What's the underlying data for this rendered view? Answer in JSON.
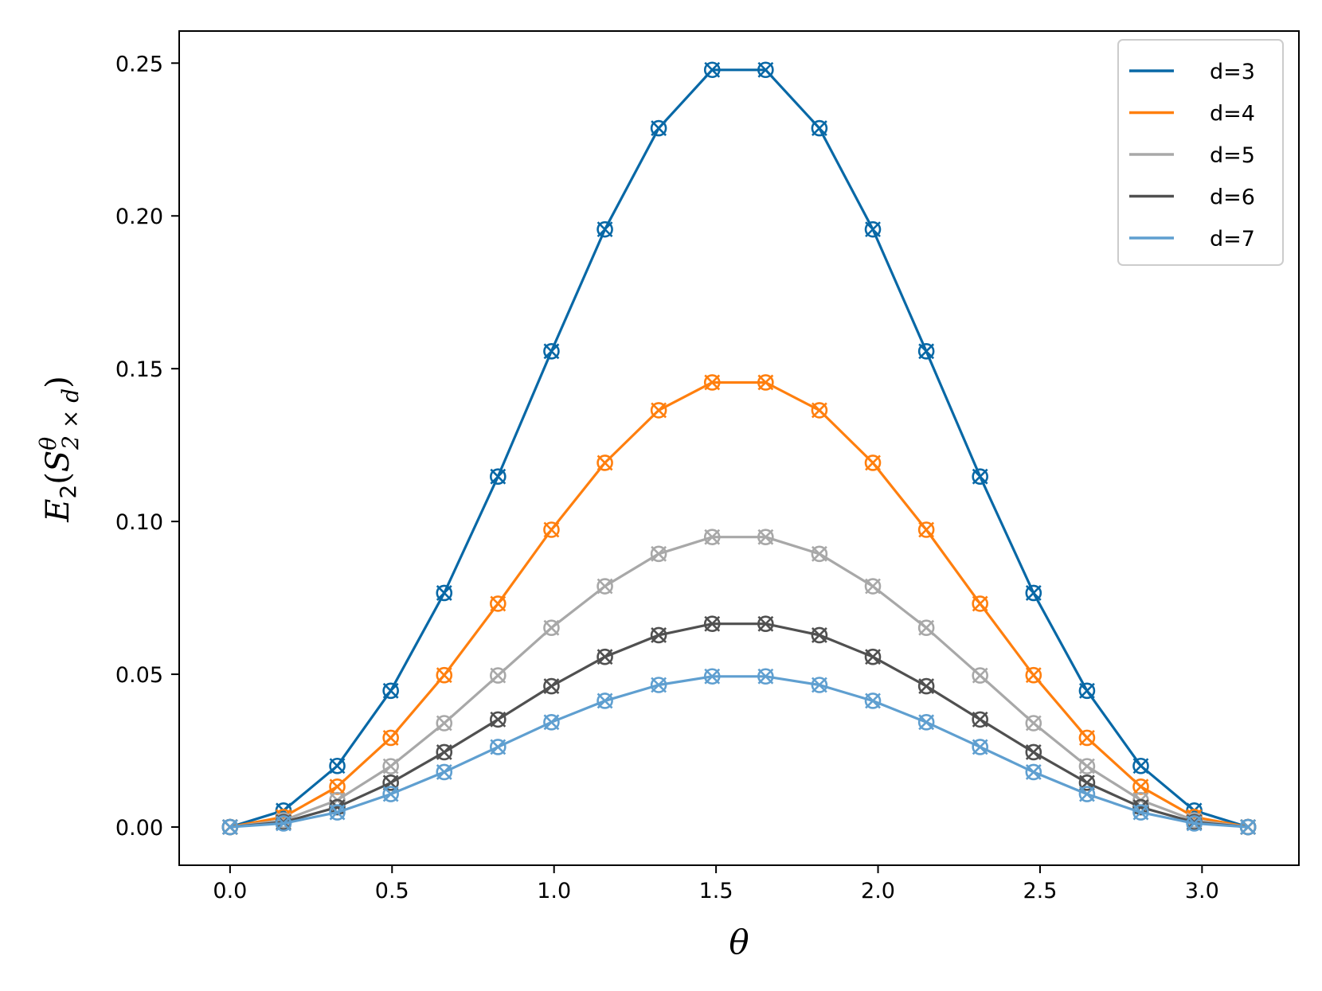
{
  "chart_data": {
    "type": "line",
    "xlabel": "θ",
    "ylabel": {
      "E": "E",
      "sub2": "2",
      "paren_open": "(",
      "S": "S",
      "sup": "θ",
      "sub": "2 × d",
      "paren_close": ")"
    },
    "xlim": [
      -0.157,
      3.299
    ],
    "ylim": [
      -0.0125,
      0.2605
    ],
    "x_ticks": [
      0.0,
      0.5,
      1.0,
      1.5,
      2.0,
      2.5,
      3.0
    ],
    "x_tick_labels": [
      "0.0",
      "0.5",
      "1.0",
      "1.5",
      "2.0",
      "2.5",
      "3.0"
    ],
    "y_ticks": [
      0.0,
      0.05,
      0.1,
      0.15,
      0.2,
      0.25
    ],
    "y_tick_labels": [
      "0.00",
      "0.05",
      "0.10",
      "0.15",
      "0.20",
      "0.25"
    ],
    "grid": false,
    "legend_position": "top-right",
    "markers": [
      "circle",
      "x"
    ],
    "x": [
      0.0,
      0.165,
      0.331,
      0.496,
      0.661,
      0.827,
      0.992,
      1.157,
      1.323,
      1.488,
      1.653,
      1.819,
      1.984,
      2.149,
      2.315,
      2.48,
      2.645,
      2.811,
      2.976,
      3.142
    ],
    "series": [
      {
        "name": "d=3",
        "color": "#0868a6",
        "values": [
          0.0,
          0.0054,
          0.02,
          0.0446,
          0.0766,
          0.1147,
          0.1557,
          0.1956,
          0.2287,
          0.2478,
          0.2478,
          0.2287,
          0.1956,
          0.1557,
          0.1147,
          0.0766,
          0.0446,
          0.02,
          0.0054,
          0.0
        ]
      },
      {
        "name": "d=4",
        "color": "#ff7f0e",
        "values": [
          0.0,
          0.0033,
          0.0132,
          0.0292,
          0.0497,
          0.0731,
          0.0973,
          0.1192,
          0.1364,
          0.1455,
          0.1455,
          0.1364,
          0.1192,
          0.0973,
          0.0731,
          0.0497,
          0.0292,
          0.0132,
          0.0033,
          0.0
        ]
      },
      {
        "name": "d=5",
        "color": "#a8a8a8",
        "values": [
          0.0,
          0.0022,
          0.0088,
          0.0199,
          0.034,
          0.0496,
          0.0652,
          0.0788,
          0.0894,
          0.0949,
          0.0949,
          0.0894,
          0.0788,
          0.0652,
          0.0496,
          0.034,
          0.0199,
          0.0088,
          0.0022,
          0.0
        ]
      },
      {
        "name": "d=6",
        "color": "#505050",
        "values": [
          0.0,
          0.0016,
          0.0065,
          0.0145,
          0.0245,
          0.0352,
          0.0461,
          0.0557,
          0.0628,
          0.0665,
          0.0665,
          0.0628,
          0.0557,
          0.0461,
          0.0352,
          0.0245,
          0.0145,
          0.0065,
          0.0016,
          0.0
        ]
      },
      {
        "name": "d=7",
        "color": "#5f9fd0",
        "values": [
          0.0,
          0.0012,
          0.0048,
          0.0108,
          0.018,
          0.0262,
          0.0343,
          0.0413,
          0.0465,
          0.0493,
          0.0493,
          0.0465,
          0.0413,
          0.0343,
          0.0262,
          0.018,
          0.0108,
          0.0048,
          0.0012,
          0.0
        ]
      }
    ]
  }
}
